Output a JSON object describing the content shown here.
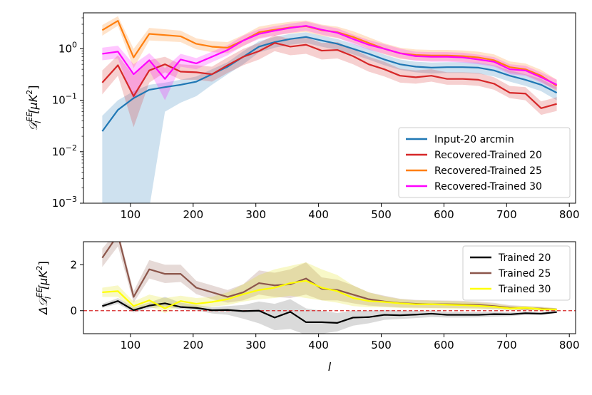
{
  "chart_data": [
    {
      "type": "line",
      "yscale": "log",
      "ylim": [
        0.001,
        5
      ],
      "xlim": [
        25,
        810
      ],
      "xlabel": "",
      "ylabel": "D_l^{EE}[μK^2]",
      "ylabel_parts": {
        "main": "𝒟",
        "sup": "EE",
        "sub": "l",
        "units": "[μK",
        "units_sup": "2",
        "units_end": "]"
      },
      "xticks": [
        100,
        200,
        300,
        400,
        500,
        600,
        700,
        800
      ],
      "xtick_labels": [
        "100",
        "200",
        "300",
        "400",
        "500",
        "600",
        "700",
        "800"
      ],
      "yticks": [
        0.001,
        0.01,
        0.1,
        1
      ],
      "ytick_labels": [
        {
          "base": "10",
          "exp": "−3"
        },
        {
          "base": "10",
          "exp": "−2"
        },
        {
          "base": "10",
          "exp": "−1"
        },
        {
          "base": "10",
          "exp": "0"
        }
      ],
      "legend_position": "lower-right",
      "x": [
        55,
        80,
        105,
        130,
        155,
        180,
        205,
        230,
        255,
        280,
        305,
        330,
        355,
        380,
        405,
        430,
        455,
        480,
        505,
        530,
        555,
        580,
        605,
        630,
        655,
        680,
        705,
        730,
        755,
        780
      ],
      "series": [
        {
          "name": "Input-20 arcmin",
          "color": "#1f77b4",
          "values": [
            0.025,
            0.065,
            0.11,
            0.16,
            0.18,
            0.2,
            0.23,
            0.32,
            0.45,
            0.7,
            1.1,
            1.35,
            1.55,
            1.7,
            1.45,
            1.25,
            1.0,
            0.8,
            0.62,
            0.5,
            0.45,
            0.43,
            0.44,
            0.44,
            0.43,
            0.38,
            0.3,
            0.25,
            0.2,
            0.14
          ],
          "lower": [
            0.0008,
            0.0008,
            0.0008,
            0.0008,
            0.06,
            0.09,
            0.12,
            0.2,
            0.32,
            0.5,
            0.85,
            1.05,
            1.2,
            1.3,
            1.1,
            0.95,
            0.78,
            0.62,
            0.48,
            0.39,
            0.35,
            0.33,
            0.34,
            0.34,
            0.33,
            0.29,
            0.23,
            0.19,
            0.15,
            0.1
          ],
          "upper": [
            0.05,
            0.1,
            0.15,
            0.2,
            0.22,
            0.25,
            0.29,
            0.4,
            0.55,
            0.9,
            1.4,
            1.7,
            1.95,
            2.1,
            1.8,
            1.55,
            1.25,
            1.0,
            0.77,
            0.62,
            0.56,
            0.54,
            0.55,
            0.55,
            0.54,
            0.48,
            0.38,
            0.32,
            0.26,
            0.18
          ]
        },
        {
          "name": "Recovered-Trained 20",
          "color": "#d62728",
          "values": [
            0.22,
            0.48,
            0.12,
            0.38,
            0.5,
            0.36,
            0.35,
            0.32,
            0.48,
            0.7,
            0.9,
            1.3,
            1.1,
            1.2,
            0.92,
            0.95,
            0.72,
            0.5,
            0.4,
            0.3,
            0.28,
            0.3,
            0.26,
            0.26,
            0.25,
            0.21,
            0.14,
            0.135,
            0.07,
            0.085
          ],
          "lower": [
            0.13,
            0.3,
            0.03,
            0.22,
            0.35,
            0.25,
            0.25,
            0.23,
            0.34,
            0.48,
            0.62,
            0.9,
            0.75,
            0.8,
            0.62,
            0.65,
            0.5,
            0.36,
            0.29,
            0.22,
            0.21,
            0.23,
            0.2,
            0.2,
            0.19,
            0.16,
            0.11,
            0.1,
            0.052,
            0.062
          ],
          "upper": [
            0.38,
            0.75,
            0.3,
            0.6,
            0.7,
            0.5,
            0.48,
            0.45,
            0.68,
            1.0,
            1.3,
            1.85,
            1.55,
            1.7,
            1.3,
            1.35,
            1.0,
            0.7,
            0.56,
            0.41,
            0.38,
            0.4,
            0.35,
            0.35,
            0.34,
            0.28,
            0.19,
            0.18,
            0.095,
            0.115
          ]
        },
        {
          "name": "Recovered-Trained 25",
          "color": "#ff7f0e",
          "values": [
            2.3,
            3.5,
            0.68,
            1.95,
            1.85,
            1.75,
            1.25,
            1.1,
            1.05,
            1.45,
            2.1,
            2.35,
            2.6,
            2.75,
            2.3,
            2.1,
            1.7,
            1.3,
            1.0,
            0.82,
            0.76,
            0.74,
            0.74,
            0.72,
            0.68,
            0.6,
            0.44,
            0.4,
            0.3,
            0.19
          ],
          "lower": [
            1.8,
            2.8,
            0.42,
            1.45,
            1.4,
            1.35,
            0.98,
            0.86,
            0.82,
            1.12,
            1.62,
            1.82,
            2.0,
            2.12,
            1.78,
            1.62,
            1.32,
            1.0,
            0.78,
            0.64,
            0.6,
            0.58,
            0.58,
            0.56,
            0.53,
            0.47,
            0.34,
            0.31,
            0.23,
            0.15
          ],
          "upper": [
            2.9,
            4.3,
            1.0,
            2.55,
            2.4,
            2.25,
            1.6,
            1.4,
            1.35,
            1.85,
            2.7,
            3.05,
            3.35,
            3.55,
            2.95,
            2.7,
            2.2,
            1.68,
            1.28,
            1.05,
            0.97,
            0.95,
            0.95,
            0.93,
            0.88,
            0.78,
            0.57,
            0.52,
            0.39,
            0.25
          ]
        },
        {
          "name": "Recovered-Trained 30",
          "color": "#ff00ff",
          "values": [
            0.8,
            0.88,
            0.32,
            0.6,
            0.26,
            0.62,
            0.52,
            0.7,
            0.95,
            1.45,
            1.95,
            2.25,
            2.55,
            2.8,
            2.35,
            2.05,
            1.55,
            1.2,
            1.0,
            0.82,
            0.72,
            0.7,
            0.7,
            0.68,
            0.62,
            0.56,
            0.4,
            0.38,
            0.28,
            0.2
          ],
          "lower": [
            0.6,
            0.65,
            0.1,
            0.38,
            0.1,
            0.45,
            0.4,
            0.55,
            0.75,
            1.15,
            1.55,
            1.8,
            2.05,
            2.25,
            1.88,
            1.64,
            1.24,
            0.96,
            0.8,
            0.66,
            0.58,
            0.56,
            0.56,
            0.54,
            0.5,
            0.45,
            0.32,
            0.3,
            0.22,
            0.16
          ],
          "upper": [
            1.05,
            1.15,
            0.5,
            0.82,
            0.42,
            0.8,
            0.66,
            0.88,
            1.18,
            1.8,
            2.4,
            2.75,
            3.1,
            3.4,
            2.85,
            2.5,
            1.9,
            1.48,
            1.23,
            1.01,
            0.88,
            0.86,
            0.86,
            0.84,
            0.77,
            0.69,
            0.5,
            0.47,
            0.35,
            0.25
          ]
        }
      ]
    },
    {
      "type": "line",
      "ylim": [
        -1.0,
        3.0
      ],
      "xlim": [
        25,
        810
      ],
      "xlabel": "l",
      "ylabel": "ΔD_l^{EE}[μK^2]",
      "ylabel_parts": {
        "main": "Δ𝒟",
        "sup": "EE",
        "sub": "l",
        "units": "[μK",
        "units_sup": "2",
        "units_end": "]"
      },
      "xticks": [
        100,
        200,
        300,
        400,
        500,
        600,
        700,
        800
      ],
      "xtick_labels": [
        "100",
        "200",
        "300",
        "400",
        "500",
        "600",
        "700",
        "800"
      ],
      "yticks": [
        0,
        2
      ],
      "ytick_labels": [
        "0",
        "2"
      ],
      "reference_line": {
        "y": 0,
        "color": "#d62728",
        "style": "dashed"
      },
      "legend_position": "upper-right",
      "x": [
        55,
        80,
        105,
        130,
        155,
        180,
        205,
        230,
        255,
        280,
        305,
        330,
        355,
        380,
        405,
        430,
        455,
        480,
        505,
        530,
        555,
        580,
        605,
        630,
        655,
        680,
        705,
        730,
        755,
        780
      ],
      "series": [
        {
          "name": "Trained 20",
          "color": "#000000",
          "fill": "#555555",
          "values": [
            0.2,
            0.42,
            0.02,
            0.22,
            0.32,
            0.16,
            0.12,
            0.02,
            0.03,
            -0.02,
            0.0,
            -0.3,
            -0.05,
            -0.5,
            -0.5,
            -0.53,
            -0.3,
            -0.28,
            -0.18,
            -0.2,
            -0.17,
            -0.13,
            -0.18,
            -0.18,
            -0.18,
            -0.15,
            -0.16,
            -0.11,
            -0.13,
            -0.06
          ],
          "lower": [
            0.12,
            0.3,
            -0.08,
            0.1,
            0.18,
            0.06,
            0.02,
            -0.12,
            -0.18,
            -0.35,
            -0.55,
            -0.85,
            -0.8,
            -1.05,
            -1.0,
            -0.9,
            -0.65,
            -0.55,
            -0.4,
            -0.36,
            -0.32,
            -0.28,
            -0.3,
            -0.3,
            -0.29,
            -0.26,
            -0.24,
            -0.18,
            -0.19,
            -0.1
          ],
          "upper": [
            0.3,
            0.55,
            0.15,
            0.35,
            0.6,
            0.35,
            0.25,
            0.15,
            0.2,
            0.25,
            0.4,
            0.3,
            0.5,
            0.1,
            0.0,
            -0.1,
            0.0,
            0.0,
            0.03,
            0.0,
            0.0,
            0.0,
            -0.05,
            -0.05,
            -0.06,
            -0.04,
            -0.07,
            -0.04,
            -0.06,
            -0.02
          ]
        },
        {
          "name": "Trained 25",
          "color": "#8c564b",
          "fill": "#8c564b",
          "values": [
            2.3,
            3.3,
            0.6,
            1.8,
            1.6,
            1.6,
            1.0,
            0.8,
            0.6,
            0.8,
            1.2,
            1.1,
            1.15,
            1.4,
            0.95,
            0.9,
            0.7,
            0.5,
            0.4,
            0.33,
            0.3,
            0.28,
            0.28,
            0.27,
            0.25,
            0.2,
            0.13,
            0.1,
            0.09,
            0.05
          ],
          "lower": [
            1.9,
            2.8,
            0.35,
            1.4,
            1.2,
            1.25,
            0.72,
            0.5,
            0.35,
            0.45,
            0.7,
            0.6,
            0.55,
            0.7,
            0.45,
            0.45,
            0.32,
            0.22,
            0.18,
            0.14,
            0.13,
            0.12,
            0.12,
            0.11,
            0.1,
            0.07,
            0.04,
            0.02,
            0.01,
            0.0
          ],
          "upper": [
            2.7,
            3.5,
            0.85,
            2.2,
            2.0,
            2.0,
            1.3,
            1.1,
            0.9,
            1.15,
            1.75,
            1.65,
            1.8,
            2.1,
            1.45,
            1.35,
            1.1,
            0.8,
            0.65,
            0.52,
            0.47,
            0.45,
            0.44,
            0.43,
            0.4,
            0.34,
            0.24,
            0.2,
            0.17,
            0.11
          ]
        },
        {
          "name": "Trained 30",
          "color": "#ffff00",
          "fill": "#e0e000",
          "values": [
            0.8,
            0.85,
            0.2,
            0.45,
            0.1,
            0.42,
            0.3,
            0.38,
            0.5,
            0.72,
            0.9,
            1.0,
            1.2,
            1.3,
            1.0,
            0.85,
            0.55,
            0.42,
            0.38,
            0.32,
            0.28,
            0.28,
            0.26,
            0.24,
            0.21,
            0.17,
            0.1,
            0.12,
            0.07,
            0.05
          ],
          "lower": [
            0.6,
            0.6,
            0.0,
            0.2,
            -0.1,
            0.22,
            0.1,
            0.18,
            0.25,
            0.4,
            0.5,
            0.55,
            0.65,
            0.55,
            0.45,
            0.35,
            0.2,
            0.15,
            0.15,
            0.12,
            0.1,
            0.1,
            0.09,
            0.08,
            0.07,
            0.05,
            0.02,
            0.03,
            0.0,
            0.0
          ],
          "upper": [
            1.0,
            1.1,
            0.4,
            0.7,
            0.55,
            0.65,
            0.55,
            0.6,
            0.8,
            1.15,
            1.55,
            1.8,
            1.95,
            2.1,
            1.8,
            1.55,
            1.1,
            0.8,
            0.62,
            0.5,
            0.45,
            0.44,
            0.42,
            0.39,
            0.35,
            0.3,
            0.2,
            0.21,
            0.15,
            0.11
          ]
        }
      ]
    }
  ]
}
